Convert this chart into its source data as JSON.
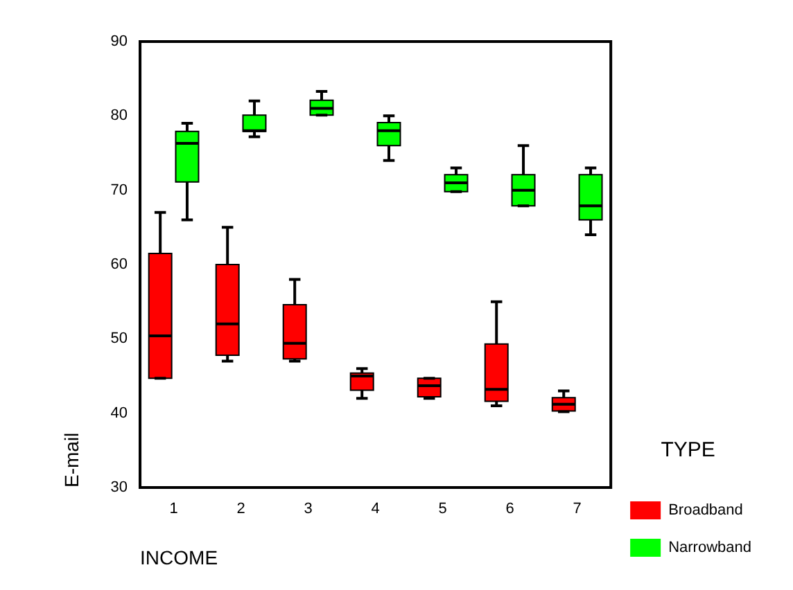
{
  "chart_data": {
    "type": "box",
    "xlabel": "INCOME",
    "ylabel": "E-mail",
    "legend_title": "TYPE",
    "legend": "right",
    "grid": false,
    "categories": [
      "1",
      "2",
      "3",
      "4",
      "5",
      "6",
      "7"
    ],
    "ylim": [
      30,
      90
    ],
    "yticks": [
      30,
      40,
      50,
      60,
      70,
      80,
      90
    ],
    "series": [
      {
        "name": "Broadband",
        "color": "#ff0000",
        "boxes": [
          {
            "low": 44.7,
            "q1": 44.7,
            "median": 50.4,
            "q3": 61.5,
            "high": 67
          },
          {
            "low": 47,
            "q1": 47.8,
            "median": 52,
            "q3": 60,
            "high": 65
          },
          {
            "low": 47,
            "q1": 47.3,
            "median": 49.4,
            "q3": 54.6,
            "high": 58
          },
          {
            "low": 42,
            "q1": 43.1,
            "median": 45,
            "q3": 45.4,
            "high": 46
          },
          {
            "low": 42,
            "q1": 42.2,
            "median": 43.7,
            "q3": 44.7,
            "high": 44.7
          },
          {
            "low": 41,
            "q1": 41.6,
            "median": 43.2,
            "q3": 49.3,
            "high": 55
          },
          {
            "low": 40.2,
            "q1": 40.3,
            "median": 41.2,
            "q3": 42.1,
            "high": 43
          }
        ]
      },
      {
        "name": "Narrowband",
        "color": "#00ff00",
        "boxes": [
          {
            "low": 66,
            "q1": 71.1,
            "median": 76.3,
            "q3": 77.9,
            "high": 79
          },
          {
            "low": 77.2,
            "q1": 77.9,
            "median": 78,
            "q3": 80.1,
            "high": 82
          },
          {
            "low": 80.1,
            "q1": 80.1,
            "median": 81,
            "q3": 82.1,
            "high": 83.3
          },
          {
            "low": 74,
            "q1": 76,
            "median": 78,
            "q3": 79.1,
            "high": 80
          },
          {
            "low": 69.8,
            "q1": 69.8,
            "median": 71,
            "q3": 72.1,
            "high": 73
          },
          {
            "low": 67.9,
            "q1": 67.9,
            "median": 70,
            "q3": 72.1,
            "high": 76
          },
          {
            "low": 64,
            "q1": 66,
            "median": 67.9,
            "q3": 72.1,
            "high": 73
          }
        ]
      }
    ]
  }
}
